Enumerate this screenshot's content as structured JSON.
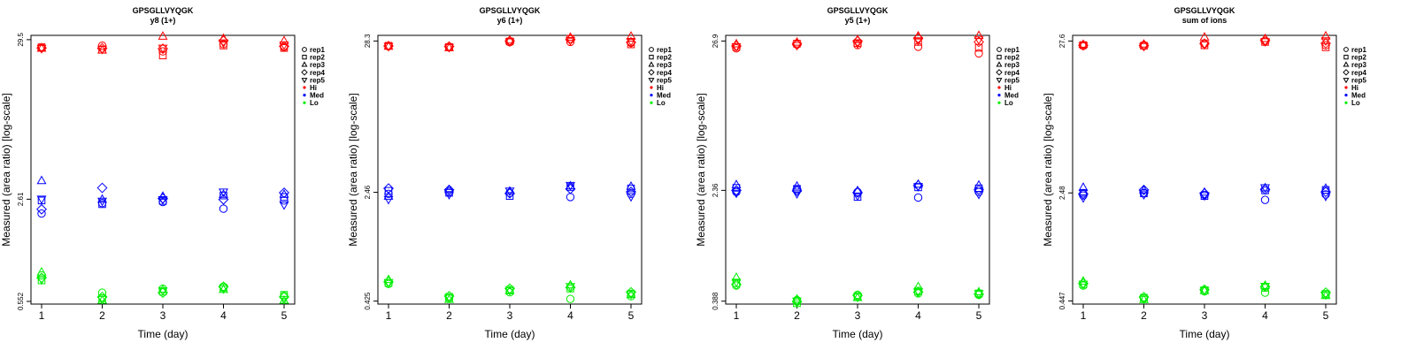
{
  "chart_data": [
    {
      "type": "scatter",
      "title": "GPSGLLVYQGK",
      "subtitle": "y8 (1+)",
      "xlabel": "Time (day)",
      "ylabel": "Measured (area ratio) [log-scale]",
      "log_scale_y": true,
      "x_ticks": [
        1,
        2,
        3,
        4,
        5
      ],
      "y_ticks": [
        "0.552",
        "2.61",
        "29.5"
      ],
      "y_tick_values": [
        0.552,
        2.61,
        29.5
      ],
      "ylim": [
        0.53,
        31.5
      ],
      "legend": {
        "position": "right",
        "shapes": [
          "rep1",
          "rep2",
          "rep3",
          "rep4",
          "rep5"
        ],
        "colors": [
          "Hi",
          "Med",
          "Lo"
        ]
      },
      "series": [
        {
          "level": "Hi",
          "rep": "rep1",
          "values": [
            26.1,
            26.9,
            24.7,
            27.6,
            26.4
          ]
        },
        {
          "level": "Hi",
          "rep": "rep2",
          "values": [
            26.3,
            25.3,
            23.2,
            27.0,
            26.0
          ]
        },
        {
          "level": "Hi",
          "rep": "rep3",
          "values": [
            25.8,
            25.1,
            31.0,
            30.0,
            28.9
          ]
        },
        {
          "level": "Hi",
          "rep": "rep4",
          "values": [
            26.0,
            25.9,
            25.7,
            29.0,
            26.7
          ]
        },
        {
          "level": "Hi",
          "rep": "rep5",
          "values": [
            25.9,
            25.6,
            26.0,
            28.2,
            27.3
          ]
        },
        {
          "level": "Med",
          "rep": "rep1",
          "values": [
            2.1,
            2.46,
            2.5,
            2.26,
            2.56
          ]
        },
        {
          "level": "Med",
          "rep": "rep2",
          "values": [
            2.56,
            2.42,
            2.54,
            2.76,
            2.7
          ]
        },
        {
          "level": "Med",
          "rep": "rep3",
          "values": [
            3.45,
            2.6,
            2.72,
            2.8,
            2.8
          ]
        },
        {
          "level": "Med",
          "rep": "rep4",
          "values": [
            2.24,
            3.1,
            2.64,
            2.6,
            2.88
          ]
        },
        {
          "level": "Med",
          "rep": "rep5",
          "values": [
            2.62,
            2.54,
            2.6,
            2.92,
            2.4
          ]
        },
        {
          "level": "Lo",
          "rep": "rep1",
          "values": [
            0.82,
            0.63,
            0.67,
            0.69,
            0.6
          ]
        },
        {
          "level": "Lo",
          "rep": "rep2",
          "values": [
            0.76,
            0.58,
            0.64,
            0.68,
            0.61
          ]
        },
        {
          "level": "Lo",
          "rep": "rep3",
          "values": [
            0.86,
            0.56,
            0.66,
            0.66,
            0.56
          ]
        },
        {
          "level": "Lo",
          "rep": "rep4",
          "values": [
            0.79,
            0.59,
            0.63,
            0.69,
            0.59
          ]
        },
        {
          "level": "Lo",
          "rep": "rep5",
          "values": [
            0.77,
            0.57,
            0.65,
            0.67,
            0.57
          ]
        }
      ]
    },
    {
      "type": "scatter",
      "title": "GPSGLLVYQGK",
      "subtitle": "y6 (1+)",
      "xlabel": "Time (day)",
      "ylabel": "Measured (area ratio) [log-scale]",
      "log_scale_y": true,
      "x_ticks": [
        1,
        2,
        3,
        4,
        5
      ],
      "y_ticks": [
        "0.425",
        "2.46",
        "28.3"
      ],
      "y_tick_values": [
        0.425,
        2.46,
        28.3
      ],
      "ylim": [
        0.405,
        31.0
      ],
      "legend": {
        "position": "right",
        "shapes": [
          "rep1",
          "rep2",
          "rep3",
          "rep4",
          "rep5"
        ],
        "colors": [
          "Hi",
          "Med",
          "Lo"
        ]
      },
      "series": [
        {
          "level": "Hi",
          "rep": "rep1",
          "values": [
            26.0,
            25.5,
            27.8,
            27.9,
            27.5
          ]
        },
        {
          "level": "Hi",
          "rep": "rep2",
          "values": [
            26.2,
            25.7,
            28.1,
            29.3,
            26.8
          ]
        },
        {
          "level": "Hi",
          "rep": "rep3",
          "values": [
            25.9,
            25.3,
            28.6,
            30.0,
            30.5
          ]
        },
        {
          "level": "Hi",
          "rep": "rep4",
          "values": [
            26.1,
            25.9,
            28.3,
            29.0,
            27.7
          ]
        },
        {
          "level": "Hi",
          "rep": "rep5",
          "values": [
            26.0,
            25.6,
            28.0,
            28.6,
            28.2
          ]
        },
        {
          "level": "Med",
          "rep": "rep1",
          "values": [
            2.4,
            2.48,
            2.44,
            2.28,
            2.4
          ]
        },
        {
          "level": "Med",
          "rep": "rep2",
          "values": [
            2.52,
            2.44,
            2.32,
            2.68,
            2.62
          ]
        },
        {
          "level": "Med",
          "rep": "rep3",
          "values": [
            2.3,
            2.56,
            2.5,
            2.72,
            2.7
          ]
        },
        {
          "level": "Med",
          "rep": "rep4",
          "values": [
            2.62,
            2.56,
            2.42,
            2.6,
            2.48
          ]
        },
        {
          "level": "Med",
          "rep": "rep5",
          "values": [
            2.2,
            2.38,
            2.52,
            2.76,
            2.3
          ]
        },
        {
          "level": "Lo",
          "rep": "rep1",
          "values": [
            0.56,
            0.445,
            0.49,
            0.44,
            0.46
          ]
        },
        {
          "level": "Lo",
          "rep": "rep2",
          "values": [
            0.57,
            0.455,
            0.51,
            0.52,
            0.48
          ]
        },
        {
          "level": "Lo",
          "rep": "rep3",
          "values": [
            0.6,
            0.435,
            0.5,
            0.55,
            0.47
          ]
        },
        {
          "level": "Lo",
          "rep": "rep4",
          "values": [
            0.58,
            0.46,
            0.52,
            0.53,
            0.49
          ]
        },
        {
          "level": "Lo",
          "rep": "rep5",
          "values": [
            0.575,
            0.45,
            0.505,
            0.54,
            0.475
          ]
        }
      ]
    },
    {
      "type": "scatter",
      "title": "GPSGLLVYQGK",
      "subtitle": "y5 (1+)",
      "xlabel": "Time (day)",
      "ylabel": "Measured (area ratio) [log-scale]",
      "log_scale_y": true,
      "x_ticks": [
        1,
        2,
        3,
        4,
        5
      ],
      "y_ticks": [
        "0.388",
        "2.36",
        "26.9"
      ],
      "y_tick_values": [
        0.388,
        2.36,
        26.9
      ],
      "ylim": [
        0.37,
        29.5
      ],
      "legend": {
        "position": "right",
        "shapes": [
          "rep1",
          "rep2",
          "rep3",
          "rep4",
          "rep5"
        ],
        "colors": [
          "Hi",
          "Med",
          "Lo"
        ]
      },
      "series": [
        {
          "level": "Hi",
          "rep": "rep1",
          "values": [
            23.9,
            25.4,
            25.2,
            24.5,
            22.0
          ]
        },
        {
          "level": "Hi",
          "rep": "rep2",
          "values": [
            24.4,
            25.8,
            26.0,
            26.5,
            24.1
          ]
        },
        {
          "level": "Hi",
          "rep": "rep3",
          "values": [
            25.6,
            26.3,
            27.4,
            29.1,
            29.3
          ]
        },
        {
          "level": "Hi",
          "rep": "rep4",
          "values": [
            24.8,
            25.6,
            26.8,
            28.2,
            26.5
          ]
        },
        {
          "level": "Hi",
          "rep": "rep5",
          "values": [
            24.6,
            25.1,
            25.9,
            27.1,
            27.5
          ]
        },
        {
          "level": "Med",
          "rep": "rep1",
          "values": [
            2.3,
            2.38,
            2.3,
            2.1,
            2.3
          ]
        },
        {
          "level": "Med",
          "rep": "rep2",
          "values": [
            2.46,
            2.42,
            2.12,
            2.48,
            2.44
          ]
        },
        {
          "level": "Med",
          "rep": "rep3",
          "values": [
            2.58,
            2.52,
            2.34,
            2.6,
            2.56
          ]
        },
        {
          "level": "Med",
          "rep": "rep4",
          "values": [
            2.36,
            2.34,
            2.28,
            2.56,
            2.38
          ]
        },
        {
          "level": "Med",
          "rep": "rep5",
          "values": [
            2.26,
            2.24,
            2.16,
            2.52,
            2.22
          ]
        },
        {
          "level": "Lo",
          "rep": "rep1",
          "values": [
            0.5,
            0.395,
            0.43,
            0.44,
            0.43
          ]
        },
        {
          "level": "Lo",
          "rep": "rep2",
          "values": [
            0.52,
            0.375,
            0.42,
            0.46,
            0.44
          ]
        },
        {
          "level": "Lo",
          "rep": "rep3",
          "values": [
            0.57,
            0.4,
            0.41,
            0.49,
            0.45
          ]
        },
        {
          "level": "Lo",
          "rep": "rep4",
          "values": [
            0.51,
            0.385,
            0.425,
            0.45,
            0.435
          ]
        },
        {
          "level": "Lo",
          "rep": "rep5",
          "values": [
            0.53,
            0.39,
            0.415,
            0.455,
            0.44
          ]
        }
      ]
    },
    {
      "type": "scatter",
      "title": "GPSGLLVYQGK",
      "subtitle": "sum of ions",
      "xlabel": "Time (day)",
      "ylabel": "Measured (area ratio) [log-scale]",
      "log_scale_y": true,
      "x_ticks": [
        1,
        2,
        3,
        4,
        5
      ],
      "y_ticks": [
        "0.447",
        "2.48",
        "27.6"
      ],
      "y_tick_values": [
        0.447,
        2.48,
        27.6
      ],
      "ylim": [
        0.425,
        30.2
      ],
      "legend": {
        "position": "right",
        "shapes": [
          "rep1",
          "rep2",
          "rep3",
          "rep4",
          "rep5"
        ],
        "colors": [
          "Hi",
          "Med",
          "Lo"
        ]
      },
      "series": [
        {
          "level": "Hi",
          "rep": "rep1",
          "values": [
            25.6,
            25.9,
            26.4,
            27.6,
            25.8
          ]
        },
        {
          "level": "Hi",
          "rep": "rep2",
          "values": [
            25.9,
            25.6,
            25.8,
            27.2,
            25.0
          ]
        },
        {
          "level": "Hi",
          "rep": "rep3",
          "values": [
            26.1,
            26.2,
            29.3,
            28.6,
            29.8
          ]
        },
        {
          "level": "Hi",
          "rep": "rep4",
          "values": [
            25.8,
            25.7,
            26.5,
            28.0,
            26.6
          ]
        },
        {
          "level": "Hi",
          "rep": "rep5",
          "values": [
            25.7,
            25.4,
            26.2,
            27.4,
            27.8
          ]
        },
        {
          "level": "Med",
          "rep": "rep1",
          "values": [
            2.38,
            2.48,
            2.4,
            2.22,
            2.42
          ]
        },
        {
          "level": "Med",
          "rep": "rep2",
          "values": [
            2.48,
            2.46,
            2.36,
            2.58,
            2.6
          ]
        },
        {
          "level": "Med",
          "rep": "rep3",
          "values": [
            2.7,
            2.58,
            2.5,
            2.68,
            2.66
          ]
        },
        {
          "level": "Med",
          "rep": "rep4",
          "values": [
            2.44,
            2.6,
            2.46,
            2.62,
            2.52
          ]
        },
        {
          "level": "Med",
          "rep": "rep5",
          "values": [
            2.3,
            2.42,
            2.38,
            2.7,
            2.36
          ]
        },
        {
          "level": "Lo",
          "rep": "rep1",
          "values": [
            0.57,
            0.465,
            0.52,
            0.51,
            0.49
          ]
        },
        {
          "level": "Lo",
          "rep": "rep2",
          "values": [
            0.58,
            0.47,
            0.53,
            0.55,
            0.5
          ]
        },
        {
          "level": "Lo",
          "rep": "rep3",
          "values": [
            0.61,
            0.455,
            0.525,
            0.57,
            0.485
          ]
        },
        {
          "level": "Lo",
          "rep": "rep4",
          "values": [
            0.59,
            0.475,
            0.535,
            0.56,
            0.51
          ]
        },
        {
          "level": "Lo",
          "rep": "rep5",
          "values": [
            0.585,
            0.46,
            0.53,
            0.565,
            0.495
          ]
        }
      ]
    }
  ],
  "colors": {
    "Hi": "#ff0000",
    "Med": "#0000ff",
    "Lo": "#00ee00"
  },
  "legend_order": [
    "rep1",
    "rep2",
    "rep3",
    "rep4",
    "rep5",
    "Hi",
    "Med",
    "Lo"
  ]
}
